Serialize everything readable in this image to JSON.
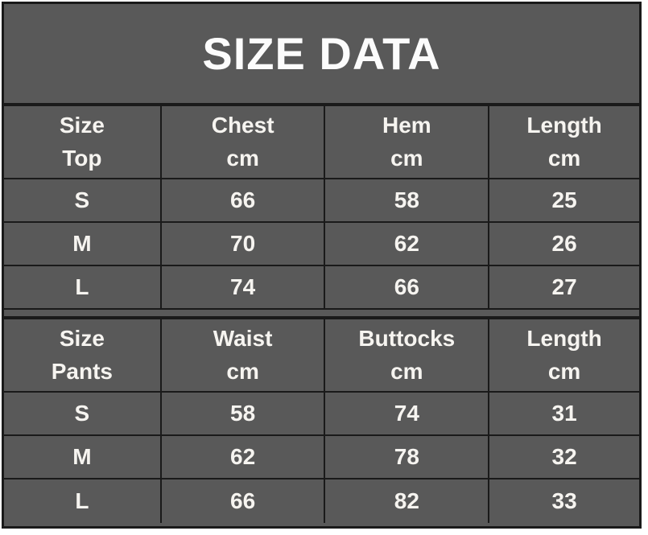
{
  "title": "SIZE DATA",
  "colors": {
    "page_bg": "#ffffff",
    "cell_bg": "#595959",
    "border": "#1a1a1a",
    "text": "#f6f4f0",
    "title_text": "#fcfcfc"
  },
  "chart_data": [
    {
      "type": "table",
      "title": "SIZE DATA",
      "section": "Top",
      "columns": [
        "Size Top",
        "Chest cm",
        "Hem cm",
        "Length cm"
      ],
      "header_lines": [
        [
          "Size",
          "Top"
        ],
        [
          "Chest",
          "cm"
        ],
        [
          "Hem",
          "cm"
        ],
        [
          "Length",
          "cm"
        ]
      ],
      "rows": [
        [
          "S",
          "66",
          "58",
          "25"
        ],
        [
          "M",
          "70",
          "62",
          "26"
        ],
        [
          "L",
          "74",
          "66",
          "27"
        ]
      ]
    },
    {
      "type": "table",
      "section": "Pants",
      "columns": [
        "Size Pants",
        "Waist cm",
        "Buttocks cm",
        "Length cm"
      ],
      "header_lines": [
        [
          "Size",
          "Pants"
        ],
        [
          "Waist",
          "cm"
        ],
        [
          "Buttocks",
          "cm"
        ],
        [
          "Length",
          "cm"
        ]
      ],
      "rows": [
        [
          "S",
          "58",
          "74",
          "31"
        ],
        [
          "M",
          "62",
          "78",
          "32"
        ],
        [
          "L",
          "66",
          "82",
          "33"
        ]
      ]
    }
  ]
}
